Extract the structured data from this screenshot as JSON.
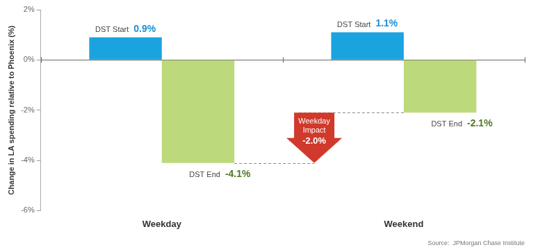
{
  "chart_data": {
    "type": "bar",
    "y_label": "Change in LA spending relative to Phoenix (%)",
    "categories": [
      "Weekday",
      "Weekend"
    ],
    "series": [
      {
        "name": "DST Start",
        "color": "#1ba3e0",
        "values": [
          0.9,
          1.1
        ],
        "value_labels": [
          "0.9%",
          "1.1%"
        ]
      },
      {
        "name": "DST End",
        "color": "#bcd97c",
        "values": [
          -4.1,
          -2.1
        ],
        "value_labels": [
          "-4.1%",
          "-2.1%"
        ]
      }
    ],
    "ylim": [
      -6,
      2
    ],
    "yticks": [
      {
        "value": -6,
        "label": "-6%"
      },
      {
        "value": -4,
        "label": "-4%"
      },
      {
        "value": -2,
        "label": "-2%"
      },
      {
        "value": 0,
        "label": "0%"
      },
      {
        "value": 2,
        "label": "2%"
      }
    ],
    "grid": false,
    "data_labels": true,
    "annotation": {
      "text": "Weekday Impact",
      "label": "-2.0%",
      "value": -2.0,
      "color": "#d0392b"
    },
    "source": "Source:  JPMorgan Chase Institute"
  }
}
